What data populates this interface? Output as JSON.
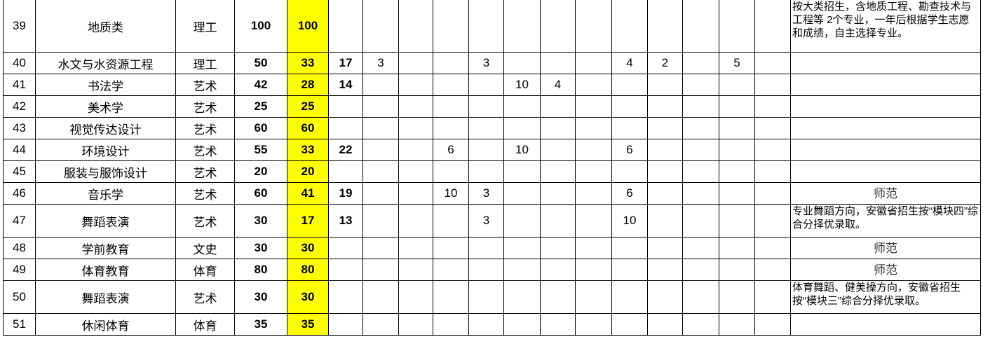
{
  "rows": [
    {
      "no": "39",
      "major": "地质类",
      "type": "理工",
      "plan": "100",
      "local": "100",
      "other": "",
      "c": [
        "",
        "",
        "",
        "",
        "",
        "",
        "",
        "",
        "",
        "",
        "",
        ""
      ],
      "note": "按大类招生，含地质工程、勘查技术与工程等 2个专业，一年后根据学生志愿和成绩，自主选择专业。"
    },
    {
      "no": "40",
      "major": "水文与水资源工程",
      "type": "理工",
      "plan": "50",
      "local": "33",
      "other": "17",
      "c": [
        "3",
        "",
        "",
        "3",
        "",
        "",
        "",
        "4",
        "2",
        "",
        "5",
        ""
      ],
      "note": ""
    },
    {
      "no": "41",
      "major": "书法学",
      "type": "艺术",
      "plan": "42",
      "local": "28",
      "other": "14",
      "c": [
        "",
        "",
        "",
        "",
        "10",
        "4",
        "",
        "",
        "",
        "",
        "",
        ""
      ],
      "note": ""
    },
    {
      "no": "42",
      "major": "美术学",
      "type": "艺术",
      "plan": "25",
      "local": "25",
      "other": "",
      "c": [
        "",
        "",
        "",
        "",
        "",
        "",
        "",
        "",
        "",
        "",
        "",
        ""
      ],
      "note": ""
    },
    {
      "no": "43",
      "major": "视觉传达设计",
      "type": "艺术",
      "plan": "60",
      "local": "60",
      "other": "",
      "c": [
        "",
        "",
        "",
        "",
        "",
        "",
        "",
        "",
        "",
        "",
        "",
        ""
      ],
      "note": ""
    },
    {
      "no": "44",
      "major": "环境设计",
      "type": "艺术",
      "plan": "55",
      "local": "33",
      "other": "22",
      "c": [
        "",
        "",
        "6",
        "",
        "10",
        "",
        "",
        "6",
        "",
        "",
        "",
        ""
      ],
      "note": ""
    },
    {
      "no": "45",
      "major": "服装与服饰设计",
      "type": "艺术",
      "plan": "20",
      "local": "20",
      "other": "",
      "c": [
        "",
        "",
        "",
        "",
        "",
        "",
        "",
        "",
        "",
        "",
        "",
        ""
      ],
      "note": ""
    },
    {
      "no": "46",
      "major": "音乐学",
      "type": "艺术",
      "plan": "60",
      "local": "41",
      "other": "19",
      "c": [
        "",
        "",
        "10",
        "3",
        "",
        "",
        "",
        "6",
        "",
        "",
        "",
        ""
      ],
      "note": "师范",
      "center": true
    },
    {
      "no": "47",
      "major": "舞蹈表演",
      "type": "艺术",
      "plan": "30",
      "local": "17",
      "other": "13",
      "c": [
        "",
        "",
        "",
        "3",
        "",
        "",
        "",
        "10",
        "",
        "",
        "",
        ""
      ],
      "note": "专业舞蹈方向，安徽省招生按“模块四”综合分择优录取。"
    },
    {
      "no": "48",
      "major": "学前教育",
      "type": "文史",
      "plan": "30",
      "local": "30",
      "other": "",
      "c": [
        "",
        "",
        "",
        "",
        "",
        "",
        "",
        "",
        "",
        "",
        "",
        ""
      ],
      "note": "师范",
      "center": true
    },
    {
      "no": "49",
      "major": "体育教育",
      "type": "体育",
      "plan": "80",
      "local": "80",
      "other": "",
      "c": [
        "",
        "",
        "",
        "",
        "",
        "",
        "",
        "",
        "",
        "",
        "",
        ""
      ],
      "note": "师范",
      "center": true
    },
    {
      "no": "50",
      "major": "舞蹈表演",
      "type": "艺术",
      "plan": "30",
      "local": "30",
      "other": "",
      "c": [
        "",
        "",
        "",
        "",
        "",
        "",
        "",
        "",
        "",
        "",
        "",
        ""
      ],
      "note": "体育舞蹈、健美操方向，安徽省招生按“模块三”综合分择优录取。"
    },
    {
      "no": "51",
      "major": "休闲体育",
      "type": "体育",
      "plan": "35",
      "local": "35",
      "other": "",
      "c": [
        "",
        "",
        "",
        "",
        "",
        "",
        "",
        "",
        "",
        "",
        "",
        ""
      ],
      "note": ""
    }
  ],
  "colors": {
    "highlight": "#ffff00",
    "grid": "#000000"
  }
}
